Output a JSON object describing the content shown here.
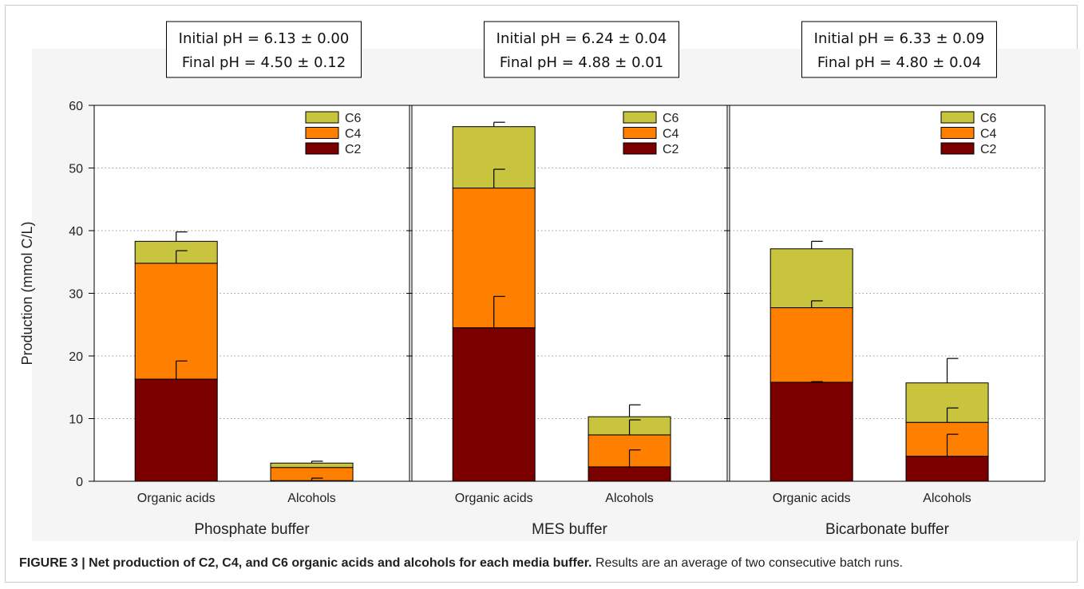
{
  "figure": {
    "caption_label": "FIGURE 3 | Net production of C2, C4, and C6 organic acids and alcohols for each media buffer.",
    "caption_text": " Results are an average of two consecutive batch runs."
  },
  "chart_data": {
    "type": "bar",
    "ylabel": "Production (mmol C/L)",
    "ylim": [
      0,
      60
    ],
    "yticks": [
      0,
      10,
      20,
      30,
      40,
      50,
      60
    ],
    "grid": "horizontal dotted",
    "colors": {
      "C2": "#7a0000",
      "C4": "#ff7f00",
      "C6": "#c9c43e"
    },
    "legend_order": [
      "C6",
      "C4",
      "C2"
    ],
    "legend_placement": "top-right",
    "panels": [
      {
        "title": "Phosphate buffer",
        "ph_initial": "Initial pH = 6.13 ± 0.00",
        "ph_final": "Final pH = 4.50 ± 0.12",
        "categories": [
          "Organic acids",
          "Alcohols"
        ],
        "series": [
          {
            "name": "C2",
            "values": [
              16.3,
              0.1
            ],
            "errors": [
              2.9,
              0.4
            ]
          },
          {
            "name": "C4",
            "values": [
              18.5,
              2.1
            ],
            "errors": [
              2.0,
              0.0
            ]
          },
          {
            "name": "C6",
            "values": [
              3.5,
              0.7
            ],
            "errors": [
              1.5,
              0.3
            ]
          }
        ]
      },
      {
        "title": "MES buffer",
        "ph_initial": "Initial pH = 6.24 ± 0.04",
        "ph_final": "Final pH = 4.88 ± 0.01",
        "categories": [
          "Organic acids",
          "Alcohols"
        ],
        "series": [
          {
            "name": "C2",
            "values": [
              24.5,
              2.3
            ],
            "errors": [
              5.0,
              2.7
            ]
          },
          {
            "name": "C4",
            "values": [
              22.3,
              5.1
            ],
            "errors": [
              3.0,
              2.4
            ]
          },
          {
            "name": "C6",
            "values": [
              9.8,
              2.9
            ],
            "errors": [
              0.7,
              1.9
            ]
          }
        ]
      },
      {
        "title": "Bicarbonate buffer",
        "ph_initial": "Initial pH = 6.33 ± 0.09",
        "ph_final": "Final pH = 4.80 ± 0.04",
        "categories": [
          "Organic acids",
          "Alcohols"
        ],
        "series": [
          {
            "name": "C2",
            "values": [
              15.8,
              4.0
            ],
            "errors": [
              0.1,
              3.5
            ]
          },
          {
            "name": "C4",
            "values": [
              11.9,
              5.4
            ],
            "errors": [
              1.1,
              2.3
            ]
          },
          {
            "name": "C6",
            "values": [
              9.4,
              6.3
            ],
            "errors": [
              1.2,
              3.9
            ]
          }
        ]
      }
    ]
  }
}
